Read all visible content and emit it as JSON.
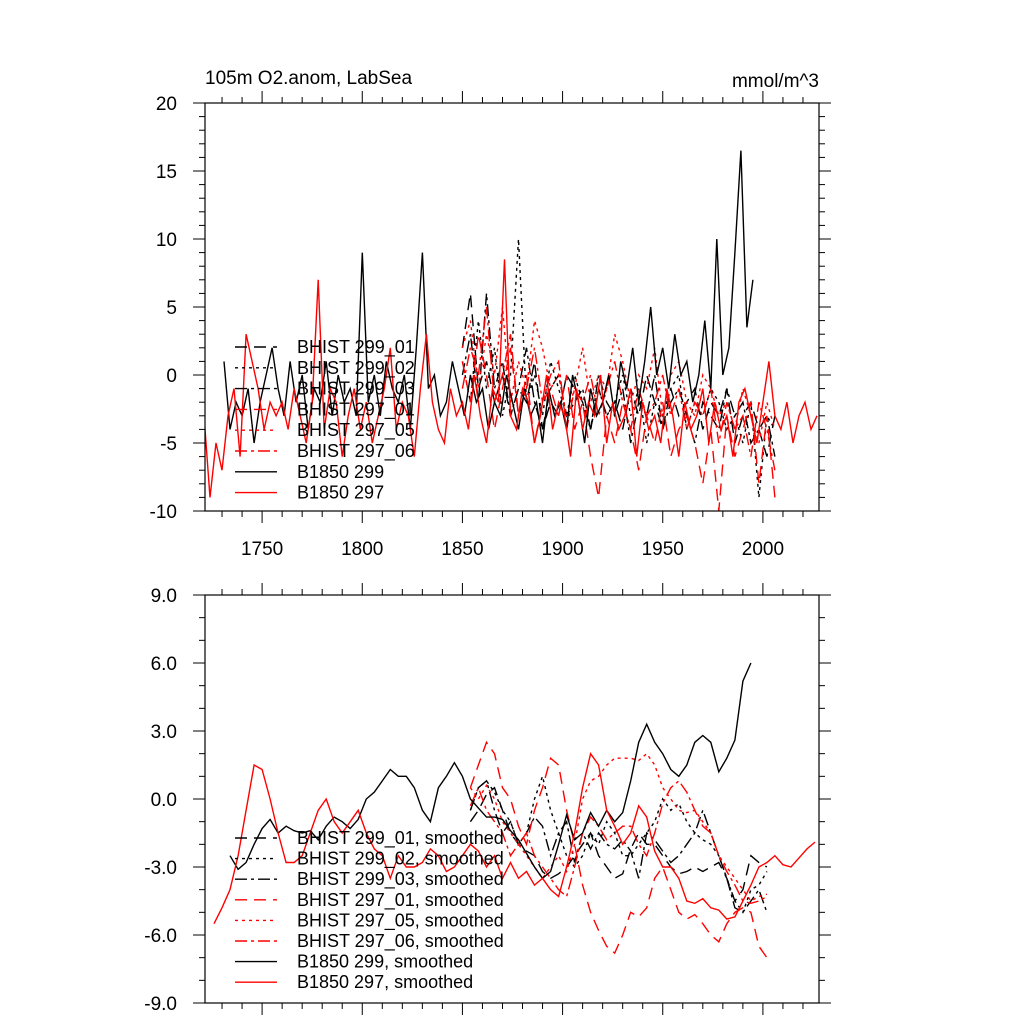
{
  "chart_data": [
    {
      "type": "line",
      "title": "105m O2.anom, LabSea",
      "units_label": "mmol/m^3",
      "xlabel": "",
      "ylabel": "",
      "xlim": [
        1721.5,
        2028
      ],
      "ylim": [
        -10,
        20
      ],
      "x_ticks": [
        1750,
        1800,
        1850,
        1900,
        1950,
        2000
      ],
      "x_tick_labels": [
        "1750",
        "1800",
        "1850",
        "1900",
        "1950",
        "2000"
      ],
      "x_minor_step": 10,
      "y_ticks": [
        -10,
        -5,
        0,
        5,
        10,
        15,
        20
      ],
      "y_tick_labels": [
        "-10",
        "-5",
        "0",
        "5",
        "10",
        "15",
        "20"
      ],
      "y_minor_step": 1,
      "grid": false,
      "legend_position": "center-left",
      "series": [
        {
          "name": "BHIST 299_01",
          "color": "#000000",
          "style": "dashed",
          "start": 1850,
          "step": 4,
          "values": [
            2,
            6,
            -1,
            1,
            -2,
            0,
            -3,
            -1,
            -2,
            1,
            -4,
            -2,
            -3,
            0,
            -1,
            -2,
            -4,
            -1,
            -3,
            -2,
            -4,
            -1,
            -3,
            0,
            -2,
            -4,
            -1,
            -3,
            -2,
            -1,
            -4,
            -2,
            -3,
            -1,
            -5,
            -3,
            -2,
            -4,
            -6,
            -3
          ]
        },
        {
          "name": "BHIST 299_02",
          "color": "#000000",
          "style": "dotted",
          "start": 1850,
          "step": 4,
          "values": [
            1,
            -2,
            4,
            -1,
            2,
            -3,
            0,
            10,
            -2,
            0,
            -3,
            1,
            -1,
            -3,
            0,
            -2,
            -4,
            -1,
            -3,
            -2,
            0,
            -3,
            -1,
            -5,
            -2,
            -3,
            -1,
            0,
            -4,
            -2,
            -3,
            -1,
            -2,
            -4,
            -3,
            -5,
            -2,
            -9,
            -3,
            -4
          ]
        },
        {
          "name": "BHIST 299_03",
          "color": "#000000",
          "style": "dashdot",
          "start": 1850,
          "step": 4,
          "values": [
            0,
            3,
            -2,
            6,
            -1,
            1,
            -3,
            -1,
            2,
            -2,
            -4,
            -1,
            0,
            -3,
            -2,
            -1,
            -4,
            0,
            -2,
            -3,
            -1,
            -5,
            -2,
            -3,
            0,
            -4,
            -2,
            -1,
            -3,
            -5,
            -2,
            -3,
            -4,
            -1,
            -3,
            -2,
            -5,
            -4,
            -3,
            -6
          ]
        },
        {
          "name": "BHIST 297_01",
          "color": "#ff0000",
          "style": "dashed",
          "start": 1850,
          "step": 4,
          "values": [
            1,
            -2,
            3,
            0,
            -4,
            -1,
            2,
            -3,
            0,
            -5,
            -2,
            -1,
            -3,
            0,
            -4,
            -2,
            -6,
            -9,
            -3,
            -5,
            -2,
            -4,
            -7,
            -3,
            -5,
            -2,
            -6,
            -4,
            -3,
            -5,
            -8,
            -4,
            -10,
            -3,
            -6,
            -4,
            -2,
            -8,
            -3,
            -9
          ]
        },
        {
          "name": "BHIST 297_05",
          "color": "#ff0000",
          "style": "dotted",
          "start": 1850,
          "step": 4,
          "values": [
            2,
            4,
            -1,
            3,
            0,
            5,
            -2,
            1,
            -1,
            4,
            2,
            -1,
            0,
            -3,
            -1,
            2,
            -2,
            0,
            -1,
            3,
            1,
            -2,
            0,
            -1,
            2,
            -3,
            0,
            1,
            -2,
            -3,
            0,
            -1,
            -3,
            -2,
            -4,
            -1,
            -3,
            -5,
            -2,
            -4
          ]
        },
        {
          "name": "BHIST 297_06",
          "color": "#ff0000",
          "style": "dashdot",
          "start": 1850,
          "step": 4,
          "values": [
            -1,
            2,
            0,
            5,
            -2,
            0,
            3,
            -3,
            -1,
            2,
            -2,
            0,
            1,
            -4,
            -1,
            -2,
            0,
            -3,
            -1,
            1,
            -2,
            -4,
            -1,
            -3,
            -2,
            0,
            -3,
            -1,
            -4,
            -2,
            -3,
            -1,
            -5,
            -2,
            -4,
            -3,
            -6,
            -2,
            -4,
            -7
          ]
        },
        {
          "name": "B1850 299",
          "color": "#000000",
          "style": "solid",
          "start": 1731,
          "step": 3,
          "values": [
            1,
            -4,
            -2,
            -3,
            -1,
            -5,
            -2,
            0,
            2,
            -1,
            -3,
            1,
            -2,
            0,
            -4,
            -1,
            -2,
            1,
            -3,
            0,
            -2,
            -1,
            -3,
            9,
            -2,
            0,
            -3,
            1,
            -1,
            -2,
            0,
            -4,
            2,
            9,
            -1,
            0,
            -3,
            -2,
            1,
            -1,
            -3,
            0,
            -2,
            -1,
            -4,
            -2,
            -3,
            0,
            -2,
            -4,
            -1,
            -3,
            -2,
            -5,
            -1,
            -3,
            -2,
            -4,
            0,
            -2,
            -5,
            -1,
            -3,
            -2,
            0,
            -3,
            1,
            -1,
            2,
            -2,
            1,
            5,
            0,
            2,
            -1,
            3,
            0,
            1,
            -2,
            0,
            4,
            -1,
            10,
            0,
            2,
            9,
            16.5,
            3.5,
            7
          ]
        },
        {
          "name": "B1850 297",
          "color": "#ff0000",
          "style": "solid",
          "start": 1721,
          "step": 3,
          "values": [
            -3,
            -9,
            -5,
            -7,
            -3,
            -1,
            -6,
            3,
            1,
            -1,
            -4,
            -2,
            -3,
            -2,
            -4,
            -1,
            -3,
            -5,
            -2,
            7,
            -4,
            -1,
            -2,
            -6,
            -3,
            -1,
            -4,
            -2,
            -5,
            -3,
            -1,
            2,
            -4,
            -2,
            -3,
            -6,
            -1,
            3,
            -2,
            -4,
            -5,
            -1,
            -3,
            -2,
            -4,
            0,
            -3,
            -5,
            -1,
            -2,
            8.5,
            -3,
            -4,
            -1,
            -2,
            -5,
            -3,
            0,
            -4,
            -2,
            -3,
            -6,
            -1,
            -4,
            -2,
            -3,
            0,
            -5,
            -2,
            -4,
            -3,
            -1,
            -6,
            -2,
            -4,
            -3,
            -5,
            -1,
            -3,
            -6,
            -2,
            -4,
            -3,
            -1,
            -5,
            -2,
            -4,
            -3,
            -6,
            -2,
            -1,
            -3,
            -5,
            -2,
            1,
            -3,
            -4,
            -2,
            -5,
            -3,
            -2,
            -4,
            -3
          ]
        }
      ]
    },
    {
      "type": "line",
      "title": "",
      "xlabel": "",
      "ylabel": "",
      "xlim": [
        1721.5,
        2028
      ],
      "ylim": [
        -9,
        9
      ],
      "x_ticks": [
        1750,
        1800,
        1850,
        1900,
        1950,
        2000
      ],
      "x_tick_labels": [],
      "x_minor_step": 10,
      "y_ticks": [
        -9,
        -6,
        -3,
        0,
        3,
        6,
        9
      ],
      "y_tick_labels": [
        "-9.0",
        "-6.0",
        "-3.0",
        "0.0",
        "3.0",
        "6.0",
        "9.0"
      ],
      "y_minor_step": 1,
      "grid": false,
      "legend_position": "bottom-left",
      "series": [
        {
          "name": "BHIST 299_01, smoothed",
          "color": "#000000",
          "style": "dashed",
          "start": 1854,
          "step": 4,
          "values": [
            -1,
            -0.5,
            0.2,
            0.5,
            -0.5,
            -1.5,
            -2,
            -2.3,
            -2.5,
            -3.2,
            -3.5,
            -3.3,
            -3.0,
            -2.5,
            -2,
            -1.5,
            -2.5,
            -3,
            -3.5,
            -3.3,
            -2.2,
            -1.5,
            -2,
            -2,
            -2.5,
            -3,
            -3.3,
            -3.2,
            -3.0,
            -3.2,
            -3,
            -2.8,
            -3.5,
            -4.5,
            -4,
            -2.5,
            -2.8,
            -3
          ]
        },
        {
          "name": "BHIST 299_02, smoothed",
          "color": "#000000",
          "style": "dotted",
          "start": 1854,
          "step": 4,
          "values": [
            -0.5,
            0.5,
            0.8,
            0.3,
            -0.5,
            -1,
            -2,
            -1.5,
            0,
            1,
            -0.5,
            -1.5,
            -2.5,
            -3,
            -2.5,
            -1.5,
            -2,
            -1,
            -1.5,
            -2.5,
            -2.5,
            -2,
            -1.5,
            -1,
            0,
            -0.5,
            -0.2,
            -1,
            -1.5,
            -1.8,
            -2,
            -2.5,
            -3.5,
            -4.5,
            -5,
            -4,
            -3.8,
            -3.2
          ]
        },
        {
          "name": "BHIST 299_03, smoothed",
          "color": "#000000",
          "style": "dashdot",
          "start": 1854,
          "step": 4,
          "values": [
            -0.5,
            0.5,
            0.8,
            -0.5,
            -1.5,
            -1.0,
            -2,
            -1.5,
            -0.8,
            -1.2,
            -2.5,
            -1.5,
            -1.0,
            -2.8,
            -1.5,
            -2.2,
            -1.5,
            -2,
            -2.2,
            -1.8,
            -2.3,
            -3.5,
            -1.5,
            -1.8,
            -2.3,
            -2.8,
            -2.5,
            -2,
            -1.5,
            -0.5,
            -1.5,
            -2.5,
            -3.5,
            -4.8,
            -5,
            -4.5,
            -4,
            -5
          ]
        },
        {
          "name": "BHIST 297_01, smoothed",
          "color": "#ff0000",
          "style": "dashed",
          "start": 1854,
          "step": 4,
          "values": [
            0.5,
            1.5,
            2.5,
            2,
            0.5,
            0,
            -1.2,
            -2,
            -0.5,
            0.5,
            1.8,
            1.5,
            -0.5,
            -2,
            -3.8,
            -5.0,
            -5.8,
            -6.5,
            -6.8,
            -6,
            -5,
            -5.2,
            -4.8,
            -3.5,
            -3,
            -4,
            -5,
            -5.3,
            -5.1,
            -5.5,
            -6,
            -6.3,
            -5.5,
            -5,
            -4.8,
            -5,
            -6.5,
            -7
          ]
        },
        {
          "name": "BHIST 297_05, smoothed",
          "color": "#ff0000",
          "style": "dotted",
          "start": 1854,
          "step": 4,
          "values": [
            0.5,
            0,
            0.6,
            0,
            -1,
            -1.5,
            -2,
            -2.5,
            -3,
            -3.5,
            -3,
            -2.5,
            -3.2,
            -2,
            0,
            0.8,
            1.0,
            1.5,
            1.8,
            1.8,
            1.8,
            1.7,
            2.0,
            1.5,
            0.5,
            0,
            -0.5,
            -0.6,
            -0.5,
            -1,
            -1.5,
            -2.5,
            -3,
            -3.5,
            -4,
            -4.5,
            -4.3,
            -4.2
          ]
        },
        {
          "name": "BHIST 297_06, smoothed",
          "color": "#ff0000",
          "style": "dashdot",
          "start": 1854,
          "step": 4,
          "values": [
            -0.3,
            0.5,
            -0.5,
            -1,
            -1.5,
            -2.5,
            -2,
            -1.5,
            -2.5,
            -3,
            -3.5,
            -4,
            -4.3,
            -3,
            -1.5,
            -0.8,
            -1.2,
            -1.8,
            -1.5,
            -1.2,
            -1.2,
            -2,
            -2.5,
            -1.5,
            -0.2,
            0.5,
            0.8,
            0.3,
            -0.5,
            -1.2,
            -1.5,
            -2.5,
            -3.2,
            -3.8,
            -4.5,
            -4.6,
            -4.5,
            -4.3
          ]
        },
        {
          "name": "B1850 299, smoothed",
          "color": "#000000",
          "style": "solid",
          "start": 1734,
          "step": 4,
          "values": [
            -2.5,
            -3.1,
            -2.8,
            -2,
            -1.3,
            -0.9,
            -1.5,
            -1.2,
            -1.4,
            -1.5,
            -1.4,
            -1.8,
            -1.2,
            -0.8,
            -1,
            -1.3,
            -0.9,
            0,
            0.3,
            0.8,
            1.3,
            1,
            1,
            0.5,
            -0.5,
            -1,
            0.5,
            1,
            1.6,
            1,
            0,
            -0.4,
            -0.8,
            -0.8,
            -0.9,
            -1.4,
            -1.8,
            -2.4,
            -3,
            -3.5,
            -3.2,
            -2,
            -0.7,
            -1.8,
            -1.5,
            -0.6,
            -1.2,
            -0.5,
            -1.0,
            -0.6,
            0.8,
            2.5,
            3.3,
            2.5,
            2,
            1.3,
            1.0,
            1.5,
            2.5,
            2.8,
            2.5,
            1.2,
            1.8,
            2.6,
            5.2,
            6
          ]
        },
        {
          "name": "B1850 297, smoothed",
          "color": "#ff0000",
          "style": "solid",
          "start": 1726,
          "step": 4,
          "values": [
            -5.5,
            -4.8,
            -4,
            -2.5,
            -0.5,
            1.5,
            1.3,
            0,
            -1.5,
            -2.8,
            -2.8,
            -2.5,
            -1.5,
            -0.5,
            0,
            -1,
            -1.5,
            -1,
            -0.5,
            -1.5,
            -2.2,
            -2.5,
            -3.5,
            -2.5,
            -3,
            -3,
            -2.8,
            -2.2,
            -2.5,
            -3.2,
            -3,
            -2.5,
            -2,
            -2.3,
            -3,
            -2.5,
            -3.5,
            -2.8,
            -3.5,
            -3.2,
            -3.8,
            -3.5,
            -4,
            -4.3,
            -3,
            -1.5,
            0.5,
            2,
            1.5,
            -0.5,
            -1.2,
            -2,
            -1.5,
            -0.3,
            -0.8,
            -2.3,
            -3,
            -3,
            -3.5,
            -4.5,
            -4.6,
            -4.4,
            -4.8,
            -4.9,
            -5.3,
            -5.2,
            -4.5,
            -3.8,
            -3,
            -2.8,
            -2.5,
            -2.9,
            -3,
            -2.6,
            -2.2,
            -1.9
          ]
        }
      ]
    }
  ]
}
